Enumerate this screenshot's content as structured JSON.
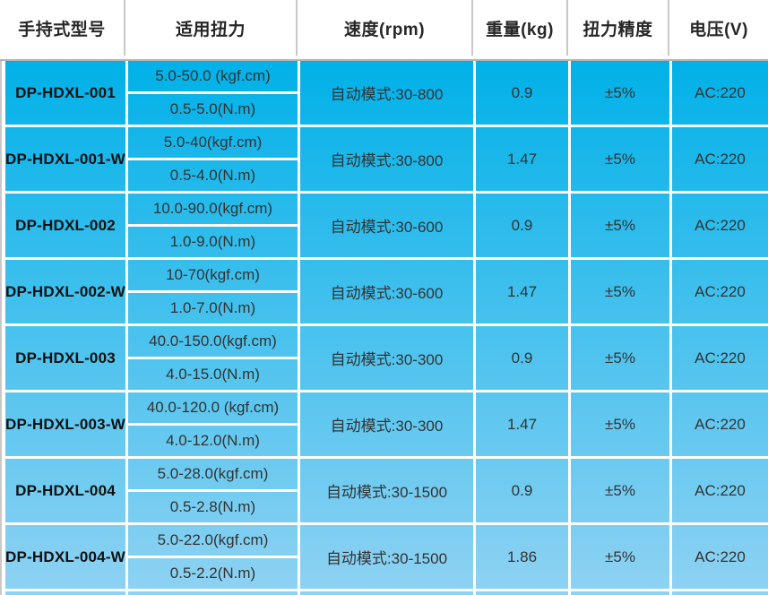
{
  "header": {
    "columns": [
      "手持式型号",
      "适用扭力",
      "速度(rpm)",
      "重量(kg)",
      "扭力精度",
      "电压(V)"
    ]
  },
  "rows": [
    {
      "model": "DP-HDXL-001",
      "torque_kgf": "5.0-50.0 (kgf.cm)",
      "torque_nm": "0.5-5.0(N.m)",
      "speed": "自动模式:30-800",
      "weight": "0.9",
      "accuracy": "±5%",
      "voltage": "AC:220"
    },
    {
      "model": "DP-HDXL-001-W",
      "torque_kgf": "5.0-40(kgf.cm)",
      "torque_nm": "0.5-4.0(N.m)",
      "speed": "自动模式:30-800",
      "weight": "1.47",
      "accuracy": "±5%",
      "voltage": "AC:220"
    },
    {
      "model": "DP-HDXL-002",
      "torque_kgf": "10.0-90.0(kgf.cm)",
      "torque_nm": "1.0-9.0(N.m)",
      "speed": "自动模式:30-600",
      "weight": "0.9",
      "accuracy": "±5%",
      "voltage": "AC:220"
    },
    {
      "model": "DP-HDXL-002-W",
      "torque_kgf": "10-70(kgf.cm)",
      "torque_nm": "1.0-7.0(N.m)",
      "speed": "自动模式:30-600",
      "weight": "1.47",
      "accuracy": "±5%",
      "voltage": "AC:220"
    },
    {
      "model": "DP-HDXL-003",
      "torque_kgf": "40.0-150.0(kgf.cm)",
      "torque_nm": "4.0-15.0(N.m)",
      "speed": "自动模式:30-300",
      "weight": "0.9",
      "accuracy": "±5%",
      "voltage": "AC:220"
    },
    {
      "model": "DP-HDXL-003-W",
      "torque_kgf": "40.0-120.0 (kgf.cm)",
      "torque_nm": "4.0-12.0(N.m)",
      "speed": "自动模式:30-300",
      "weight": "1.47",
      "accuracy": "±5%",
      "voltage": "AC:220"
    },
    {
      "model": "DP-HDXL-004",
      "torque_kgf": "5.0-28.0(kgf.cm)",
      "torque_nm": "0.5-2.8(N.m)",
      "speed": "自动模式:30-1500",
      "weight": "0.9",
      "accuracy": "±5%",
      "voltage": "AC:220"
    },
    {
      "model": "DP-HDXL-004-W",
      "torque_kgf": "5.0-22.0(kgf.cm)",
      "torque_nm": "0.5-2.2(N.m)",
      "speed": "自动模式:30-1500",
      "weight": "1.86",
      "accuracy": "±5%",
      "voltage": "AC:220"
    }
  ],
  "colors": {
    "body_gradient_top": "#00B1E8",
    "body_gradient_bottom": "#8FD2F3",
    "cell_border": "#FFFFFF",
    "header_bg": "#FFFFFF",
    "header_text": "#262626",
    "header_separator": "#C8C8C8",
    "body_text": "#333333",
    "model_text": "#111111",
    "body_top_line": "#B4B4B4",
    "left_edge_line": "#C9C9C9"
  }
}
